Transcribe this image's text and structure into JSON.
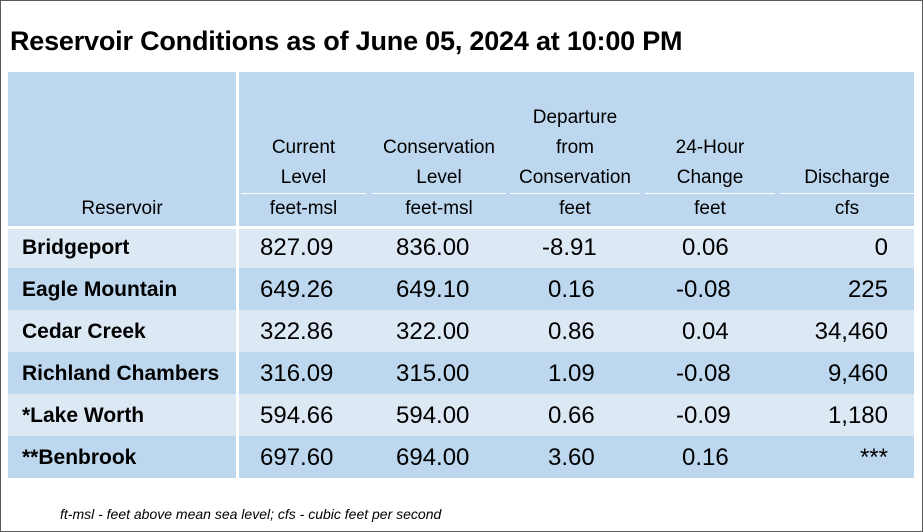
{
  "title": "Reservoir Conditions as of June 05, 2024 at 10:00 PM",
  "headers": {
    "reservoir": "Reservoir",
    "current_l1": "Current",
    "current_l2": "Level",
    "current_unit": "feet-msl",
    "conservation_l1": "Conservation",
    "conservation_l2": "Level",
    "conservation_unit": "feet-msl",
    "departure_l1": "Departure",
    "departure_l2": "from",
    "departure_l3": "Conservation",
    "departure_unit": "feet",
    "change_l1": "24-Hour",
    "change_l2": "Change",
    "change_unit": "feet",
    "discharge_l1": "Discharge",
    "discharge_unit": "cfs"
  },
  "rows": [
    {
      "name": "Bridgeport",
      "current": "827.09",
      "conservation": "836.00",
      "departure": "-8.91",
      "change": "0.06",
      "discharge": "0"
    },
    {
      "name": "Eagle Mountain",
      "current": "649.26",
      "conservation": "649.10",
      "departure": "0.16",
      "change": "-0.08",
      "discharge": "225"
    },
    {
      "name": "Cedar Creek",
      "current": "322.86",
      "conservation": "322.00",
      "departure": "0.86",
      "change": "0.04",
      "discharge": "34,460"
    },
    {
      "name": "Richland Chambers",
      "current": "316.09",
      "conservation": "315.00",
      "departure": "1.09",
      "change": "-0.08",
      "discharge": "9,460"
    },
    {
      "name": "*Lake Worth",
      "current": "594.66",
      "conservation": "594.00",
      "departure": "0.66",
      "change": "-0.09",
      "discharge": "1,180"
    },
    {
      "name": "**Benbrook",
      "current": "697.60",
      "conservation": "694.00",
      "departure": "3.60",
      "change": "0.16",
      "discharge": "***"
    }
  ],
  "footnote": "ft-msl - feet above mean sea level; cfs - cubic feet per second",
  "colors": {
    "header_bg": "#bdd7ee",
    "row_light": "#dce9f5",
    "row_dark": "#bdd7ee"
  }
}
